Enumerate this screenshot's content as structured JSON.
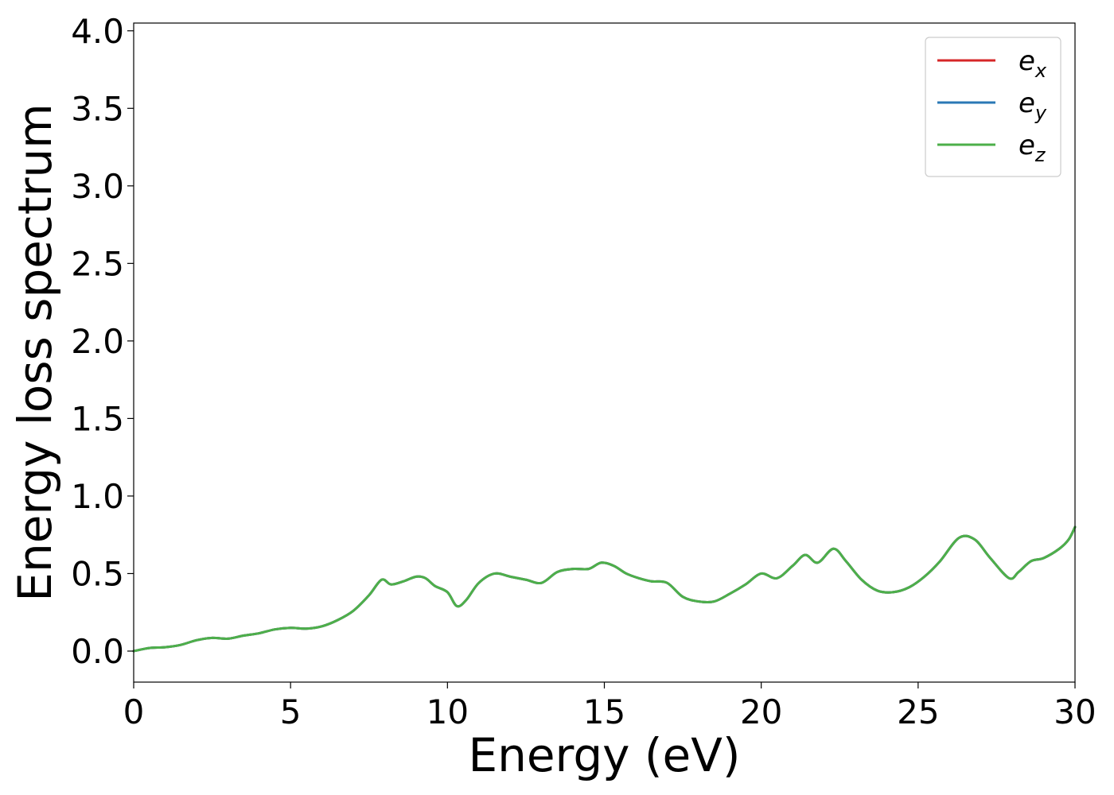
{
  "chart_data": {
    "type": "line",
    "title": "",
    "xlabel": "Energy (eV)",
    "ylabel": "Energy loss spectrum",
    "xlim": [
      0,
      30
    ],
    "ylim": [
      -0.2,
      4.05
    ],
    "xticks": [
      0,
      5,
      10,
      15,
      20,
      25,
      30
    ],
    "xtick_labels": [
      "0",
      "5",
      "10",
      "15",
      "20",
      "25",
      "30"
    ],
    "yticks": [
      0.0,
      0.5,
      1.0,
      1.5,
      2.0,
      2.5,
      3.0,
      3.5,
      4.0
    ],
    "ytick_labels": [
      "0.0",
      "0.5",
      "1.0",
      "1.5",
      "2.0",
      "2.5",
      "3.0",
      "3.5",
      "4.0"
    ],
    "grid": false,
    "legend_position": "top-right",
    "x": [
      0,
      0.5,
      1.0,
      1.5,
      2.0,
      2.5,
      3.0,
      3.5,
      4.0,
      4.5,
      5.0,
      5.5,
      6.0,
      6.5,
      7.0,
      7.5,
      7.9,
      8.2,
      8.6,
      9.0,
      9.3,
      9.6,
      10.0,
      10.3,
      10.6,
      11.0,
      11.5,
      12.0,
      12.5,
      13.0,
      13.5,
      14.0,
      14.5,
      14.9,
      15.3,
      15.7,
      16.1,
      16.5,
      17.0,
      17.5,
      18.0,
      18.5,
      19.0,
      19.5,
      20.0,
      20.5,
      21.0,
      21.4,
      21.8,
      22.3,
      22.7,
      23.2,
      23.7,
      24.2,
      24.7,
      25.2,
      25.7,
      26.3,
      26.8,
      27.3,
      27.9,
      28.2,
      28.6,
      29.0,
      29.5,
      29.8,
      30.0
    ],
    "series": [
      {
        "name": "e_x",
        "color": "#d62728",
        "values": [
          0.0,
          0.02,
          0.025,
          0.04,
          0.07,
          0.085,
          0.08,
          0.1,
          0.115,
          0.14,
          0.15,
          0.145,
          0.16,
          0.2,
          0.26,
          0.36,
          0.46,
          0.43,
          0.45,
          0.48,
          0.47,
          0.42,
          0.38,
          0.29,
          0.33,
          0.44,
          0.5,
          0.48,
          0.46,
          0.44,
          0.51,
          0.53,
          0.53,
          0.57,
          0.55,
          0.5,
          0.47,
          0.45,
          0.44,
          0.35,
          0.32,
          0.32,
          0.37,
          0.43,
          0.5,
          0.47,
          0.55,
          0.62,
          0.57,
          0.66,
          0.58,
          0.46,
          0.39,
          0.38,
          0.41,
          0.48,
          0.58,
          0.73,
          0.72,
          0.6,
          0.47,
          0.51,
          0.58,
          0.6,
          0.66,
          0.72,
          0.8
        ]
      },
      {
        "name": "e_y",
        "color": "#2a78b6",
        "values": [
          0.0,
          0.02,
          0.025,
          0.04,
          0.07,
          0.085,
          0.08,
          0.1,
          0.115,
          0.14,
          0.15,
          0.145,
          0.16,
          0.2,
          0.26,
          0.36,
          0.46,
          0.43,
          0.45,
          0.48,
          0.47,
          0.42,
          0.38,
          0.29,
          0.33,
          0.44,
          0.5,
          0.48,
          0.46,
          0.44,
          0.51,
          0.53,
          0.53,
          0.57,
          0.55,
          0.5,
          0.47,
          0.45,
          0.44,
          0.35,
          0.32,
          0.32,
          0.37,
          0.43,
          0.5,
          0.47,
          0.55,
          0.62,
          0.57,
          0.66,
          0.58,
          0.46,
          0.39,
          0.38,
          0.41,
          0.48,
          0.58,
          0.73,
          0.72,
          0.6,
          0.47,
          0.51,
          0.58,
          0.6,
          0.66,
          0.72,
          0.8
        ]
      },
      {
        "name": "e_z",
        "color": "#4daf4a",
        "values": [
          0.0,
          0.02,
          0.025,
          0.04,
          0.07,
          0.085,
          0.08,
          0.1,
          0.115,
          0.14,
          0.15,
          0.145,
          0.16,
          0.2,
          0.26,
          0.36,
          0.46,
          0.43,
          0.45,
          0.48,
          0.47,
          0.42,
          0.38,
          0.29,
          0.33,
          0.44,
          0.5,
          0.48,
          0.46,
          0.44,
          0.51,
          0.53,
          0.53,
          0.57,
          0.55,
          0.5,
          0.47,
          0.45,
          0.44,
          0.35,
          0.32,
          0.32,
          0.37,
          0.43,
          0.5,
          0.47,
          0.55,
          0.62,
          0.57,
          0.66,
          0.58,
          0.46,
          0.39,
          0.38,
          0.41,
          0.48,
          0.58,
          0.73,
          0.72,
          0.6,
          0.47,
          0.51,
          0.58,
          0.6,
          0.66,
          0.72,
          0.8
        ]
      }
    ],
    "legend": [
      {
        "base": "e",
        "sub": "x",
        "color": "#d62728"
      },
      {
        "base": "e",
        "sub": "y",
        "color": "#2a78b6"
      },
      {
        "base": "e",
        "sub": "z",
        "color": "#4daf4a"
      }
    ]
  }
}
